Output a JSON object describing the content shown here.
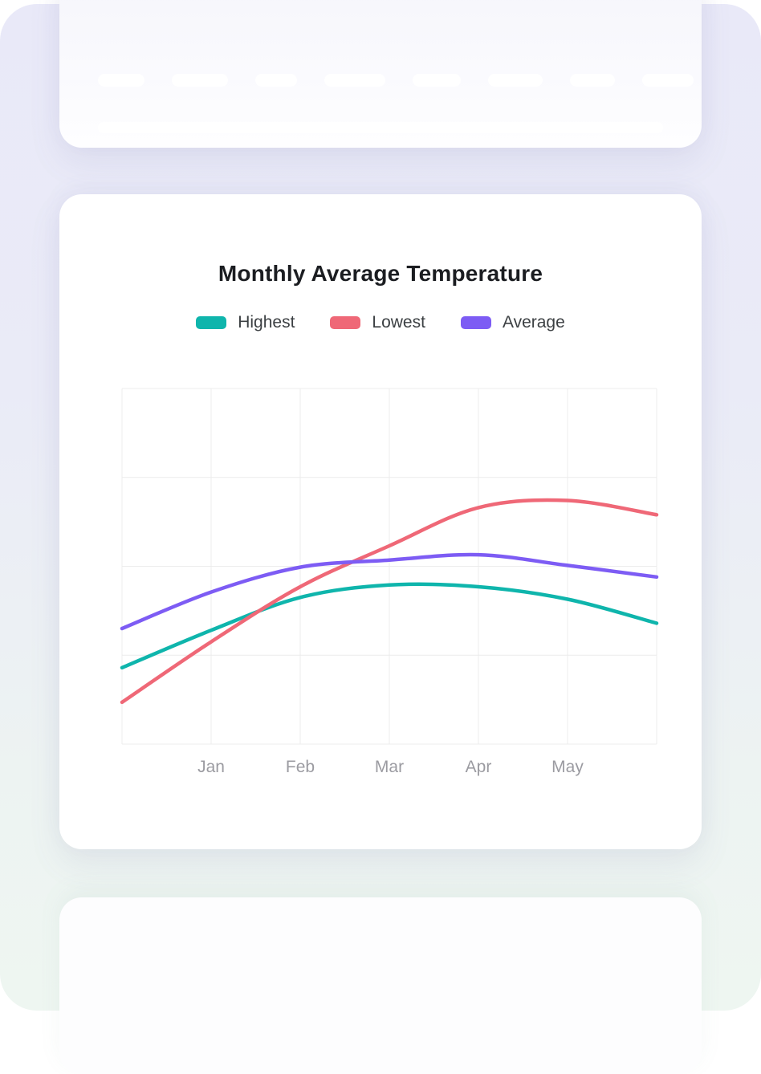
{
  "page": {
    "background_top_color": "#e9e9f8",
    "background_bottom_color": "#eef6f1",
    "card_color": "#ffffff"
  },
  "chart_data": {
    "type": "line",
    "title": "Monthly Average Temperature",
    "categories": [
      "",
      "Jan",
      "Feb",
      "Mar",
      "Apr",
      "May",
      ""
    ],
    "series": [
      {
        "name": "Highest",
        "color": "#0fb5ac",
        "values": [
          8.6,
          12.8,
          16.5,
          17.9,
          17.7,
          16.3,
          13.6
        ]
      },
      {
        "name": "Lowest",
        "color": "#ef6877",
        "values": [
          4.7,
          11.5,
          17.7,
          22.3,
          26.6,
          27.4,
          25.8
        ]
      },
      {
        "name": "Average",
        "color": "#7d5cf4",
        "values": [
          13.0,
          17.1,
          19.9,
          20.7,
          21.3,
          20.1,
          18.8
        ]
      }
    ],
    "xlabel": "",
    "ylabel": "",
    "ylim": [
      0,
      40
    ],
    "y_gridline_count": 5,
    "x_gridline_count": 7,
    "y_tick_labels_visible": false,
    "grid": true,
    "smooth": true,
    "line_width": 4.5,
    "legend_position": "top",
    "grid_color": "#ececec",
    "axis_label_color": "#9b9ba1",
    "title_color": "#1b1d21",
    "legend_text_color": "#3c4043"
  }
}
